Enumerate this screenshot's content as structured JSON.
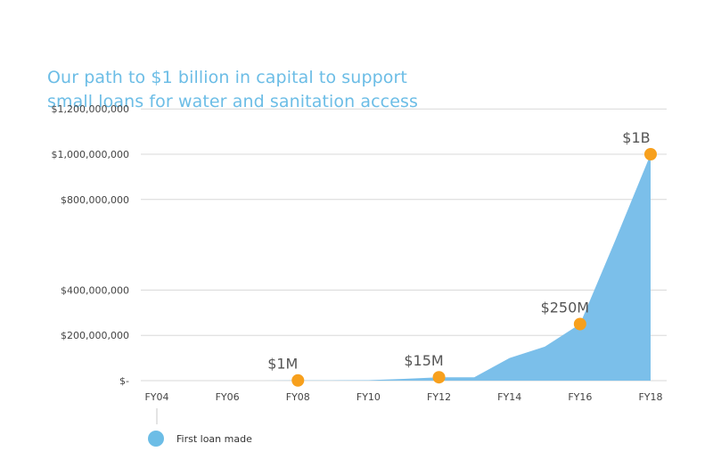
{
  "title_lines": [
    "Our path to $1 billion in capital to support",
    "small loans for water and sanitation access"
  ],
  "colors": {
    "area": "#7bbfea",
    "milestone": "#f7a01d",
    "title": "#6cbde6",
    "grid": "#d8d8d8",
    "axis_text": "#444444",
    "annotation_text": "#555555"
  },
  "legend": {
    "label": "First loan made"
  },
  "chart_data": {
    "type": "area",
    "ylim": [
      0,
      1200000000
    ],
    "y_ticks": [
      {
        "value": 0,
        "label": "$-"
      },
      {
        "value": 200000000,
        "label": "$200,000,000"
      },
      {
        "value": 400000000,
        "label": "$400,000,000"
      },
      {
        "value": 800000000,
        "label": "$800,000,000"
      },
      {
        "value": 1000000000,
        "label": "$1,000,000,000"
      },
      {
        "value": 1200000000,
        "label": "$1,200,000,000"
      }
    ],
    "x_ticks": [
      "FY04",
      "FY06",
      "FY08",
      "FY10",
      "FY12",
      "FY14",
      "FY16",
      "FY18"
    ],
    "series": [
      {
        "x": [
          "FY04",
          "FY05",
          "FY06",
          "FY07",
          "FY08",
          "FY09",
          "FY10",
          "FY11",
          "FY12",
          "FY13",
          "FY14",
          "FY15",
          "FY16",
          "FY17",
          "FY18"
        ],
        "values": [
          0,
          0,
          0,
          0,
          1000000,
          1000000,
          2000000,
          8000000,
          15000000,
          15000000,
          100000000,
          150000000,
          250000000,
          620000000,
          1000000000
        ]
      }
    ],
    "milestones": [
      {
        "x": "FY08",
        "value": 1000000,
        "label": "$1M"
      },
      {
        "x": "FY12",
        "value": 15000000,
        "label": "$15M"
      },
      {
        "x": "FY16",
        "value": 250000000,
        "label": "$250M"
      },
      {
        "x": "FY18",
        "value": 1000000000,
        "label": "$1B"
      }
    ],
    "first_loan_marker": "FY04"
  }
}
